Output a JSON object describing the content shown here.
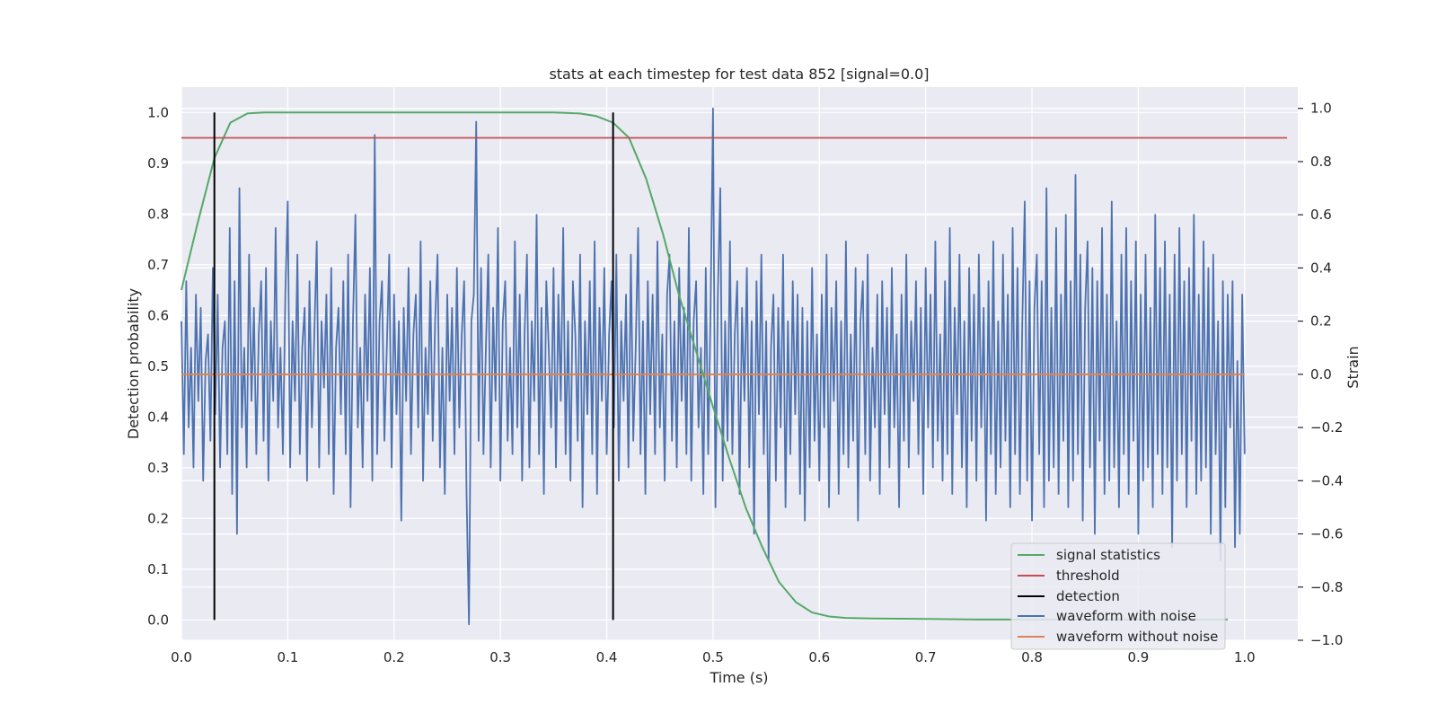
{
  "chart_data": {
    "type": "line",
    "title": "stats at each timestep for test data 852 [signal=0.0]",
    "xlabel": "Time (s)",
    "ylabel_left": "Detection probability",
    "ylabel_right": "Strain",
    "xlim": [
      0.0,
      1.05
    ],
    "ylim_left": [
      -0.04,
      1.05
    ],
    "ylim_right": [
      -1.0,
      1.08
    ],
    "xticks": [
      "0.0",
      "0.1",
      "0.2",
      "0.3",
      "0.4",
      "0.5",
      "0.6",
      "0.7",
      "0.8",
      "0.9",
      "1.0"
    ],
    "yticks_left": [
      "0.0",
      "0.1",
      "0.2",
      "0.3",
      "0.4",
      "0.5",
      "0.6",
      "0.7",
      "0.8",
      "0.9",
      "1.0"
    ],
    "yticks_right": [
      "−1.0",
      "−0.8",
      "−0.6",
      "−0.4",
      "−0.2",
      "0.0",
      "0.2",
      "0.4",
      "0.6",
      "0.8",
      "1.0"
    ],
    "grid": true,
    "legend_position": "lower-right",
    "colors": {
      "background": "#eaeaf2",
      "grid": "#ffffff",
      "signal_statistics": "#55a868",
      "threshold": "#c44e52",
      "detection": "#000000",
      "waveform_with_noise": "#4c72b0",
      "waveform_without_noise": "#dd8452"
    },
    "series": [
      {
        "name": "signal statistics",
        "axis": "left",
        "x": [
          0.0,
          0.015,
          0.031,
          0.046,
          0.062,
          0.078,
          0.1,
          0.2,
          0.3,
          0.35,
          0.375,
          0.39,
          0.406,
          0.421,
          0.437,
          0.453,
          0.468,
          0.484,
          0.5,
          0.515,
          0.531,
          0.546,
          0.562,
          0.578,
          0.593,
          0.609,
          0.625,
          0.65,
          0.7,
          0.75,
          0.8,
          0.9,
          0.984
        ],
        "y": [
          0.65,
          0.78,
          0.91,
          0.98,
          0.998,
          1.0,
          1.0,
          1.0,
          1.0,
          1.0,
          0.998,
          0.993,
          0.98,
          0.95,
          0.87,
          0.76,
          0.64,
          0.53,
          0.42,
          0.32,
          0.22,
          0.145,
          0.075,
          0.035,
          0.015,
          0.007,
          0.004,
          0.003,
          0.002,
          0.001,
          0.001,
          0.001,
          0.001
        ]
      },
      {
        "name": "threshold",
        "axis": "left",
        "x": [
          0.0,
          1.04
        ],
        "y": [
          0.95,
          0.95
        ]
      },
      {
        "name": "detection",
        "axis": "left",
        "x": [
          0.031,
          0.406
        ],
        "y": [
          1.0,
          1.0
        ]
      },
      {
        "name": "waveform with noise",
        "axis": "right",
        "x_range": [
          0.0,
          1.0
        ],
        "y": [
          0.2,
          -0.3,
          0.35,
          -0.2,
          0.1,
          -0.35,
          0.3,
          -0.1,
          0.25,
          -0.4,
          0.05,
          0.15,
          -0.25,
          0.4,
          -0.15,
          0.3,
          -0.35,
          0.1,
          0.2,
          -0.3,
          0.55,
          -0.45,
          0.35,
          -0.6,
          0.7,
          -0.2,
          0.1,
          -0.35,
          0.45,
          -0.1,
          0.25,
          -0.3,
          0.15,
          0.35,
          -0.25,
          0.4,
          -0.4,
          0.2,
          -0.1,
          0.55,
          -0.2,
          0.1,
          -0.3,
          0.3,
          0.65,
          -0.35,
          0.2,
          -0.1,
          0.45,
          -0.3,
          0.1,
          0.25,
          -0.4,
          0.35,
          -0.2,
          0.15,
          0.5,
          -0.35,
          0.2,
          -0.05,
          0.3,
          -0.3,
          0.4,
          -0.45,
          0.1,
          0.25,
          -0.15,
          0.35,
          -0.3,
          0.45,
          -0.5,
          0.2,
          0.6,
          -0.2,
          0.1,
          -0.35,
          0.3,
          -0.1,
          0.4,
          -0.4,
          0.9,
          -0.3,
          0.2,
          0.35,
          -0.25,
          0.1,
          0.45,
          -0.35,
          0.3,
          -0.15,
          0.2,
          -0.55,
          0.25,
          -0.1,
          0.4,
          -0.3,
          0.15,
          0.3,
          -0.2,
          0.5,
          -0.4,
          0.1,
          -0.15,
          0.35,
          -0.25,
          0.2,
          0.45,
          -0.35,
          0.1,
          -0.45,
          0.3,
          -0.1,
          0.25,
          -0.3,
          0.4,
          -0.2,
          0.15,
          0.35,
          -0.45,
          -0.94,
          0.2,
          0.3,
          0.95,
          -0.25,
          0.4,
          -0.3,
          0.1,
          0.45,
          -0.35,
          0.25,
          -0.1,
          0.55,
          -0.4,
          0.2,
          0.35,
          -0.25,
          0.1,
          -0.3,
          0.5,
          -0.2,
          0.3,
          -0.4,
          0.15,
          0.45,
          -0.35,
          0.2,
          -0.1,
          0.6,
          -0.3,
          0.25,
          -0.45,
          0.35,
          0.1,
          -0.2,
          0.4,
          -0.35,
          0.3,
          -0.1,
          0.55,
          -0.3,
          0.2,
          -0.4,
          0.35,
          0.15,
          -0.25,
          0.45,
          -0.5,
          0.2,
          -0.15,
          0.35,
          -0.3,
          0.5,
          -0.45,
          0.25,
          -0.1,
          0.4,
          -0.3,
          0.15,
          0.35,
          -0.2,
          0.45,
          -0.4,
          0.2,
          -0.1,
          0.3,
          -0.35,
          0.45,
          -0.25,
          0.1,
          0.55,
          -0.3,
          0.2,
          -0.45,
          0.35,
          -0.15,
          0.3,
          -0.3,
          0.5,
          -0.2,
          0.15,
          -0.4,
          0.3,
          0.45,
          -0.25,
          0.2,
          -0.35,
          0.4,
          -0.1,
          0.25,
          -0.3,
          0.55,
          -0.4,
          0.2,
          0.35,
          -0.2,
          0.1,
          -0.45,
          0.4,
          -0.3,
          0.25,
          1.0,
          -0.5,
          0.3,
          0.7,
          -0.4,
          0.2,
          -0.25,
          0.5,
          -0.3,
          0.15,
          0.35,
          -0.45,
          0.25,
          -0.1,
          0.4,
          -0.35,
          0.2,
          -0.6,
          0.35,
          -0.15,
          0.45,
          -0.3,
          0.2,
          -0.7,
          0.1,
          0.3,
          -0.4,
          0.25,
          -0.2,
          0.45,
          -0.5,
          0.2,
          -0.3,
          0.35,
          -0.15,
          0.3,
          -0.45,
          0.25,
          -0.55,
          0.2,
          -0.35,
          0.4,
          -0.25,
          0.15,
          -0.4,
          0.3,
          -0.2,
          0.45,
          -0.5,
          0.25,
          -0.1,
          0.35,
          -0.45,
          0.2,
          -0.3,
          0.5,
          -0.35,
          0.15,
          -0.25,
          0.4,
          -0.55,
          0.2,
          0.35,
          -0.3,
          0.45,
          -0.4,
          0.1,
          -0.2,
          0.3,
          -0.45,
          0.35,
          -0.15,
          0.25,
          -0.35,
          0.4,
          -0.2,
          0.15,
          -0.5,
          0.3,
          -0.25,
          0.45,
          -0.35,
          0.2,
          -0.1,
          0.35,
          -0.3,
          0.25,
          -0.45,
          0.4,
          -0.2,
          0.3,
          -0.35,
          0.5,
          -0.25,
          0.15,
          -0.4,
          0.35,
          -0.3,
          0.55,
          -0.45,
          0.25,
          -0.15,
          0.45,
          -0.35,
          0.2,
          -0.5,
          0.4,
          -0.25,
          0.3,
          -0.4,
          0.45,
          -0.2,
          0.25,
          -0.55,
          0.35,
          -0.3,
          0.5,
          -0.45,
          0.2,
          -0.35,
          0.45,
          -0.25,
          0.3,
          -0.5,
          0.55,
          -0.3,
          0.4,
          -0.45,
          0.2,
          0.65,
          -0.4,
          0.35,
          -0.55,
          0.25,
          0.45,
          -0.3,
          0.35,
          -0.5,
          0.7,
          -0.4,
          0.25,
          -0.35,
          0.55,
          -0.45,
          0.3,
          -0.25,
          0.6,
          -0.5,
          0.35,
          -0.4,
          0.75,
          -0.3,
          0.45,
          -0.55,
          0.25,
          0.5,
          -0.35,
          0.4,
          -0.6,
          0.35,
          -0.25,
          0.55,
          -0.45,
          0.3,
          -0.4,
          0.65,
          -0.35,
          0.2,
          -0.5,
          0.45,
          -0.3,
          0.55,
          -0.45,
          0.35,
          -0.25,
          0.5,
          -0.6,
          0.3,
          -0.4,
          0.45,
          -0.35,
          0.25,
          -0.5,
          0.6,
          -0.3,
          0.4,
          -0.45,
          0.5,
          -0.35,
          0.3,
          -0.65,
          0.45,
          -0.4,
          0.55,
          -0.3,
          0.35,
          -0.5,
          0.4,
          -0.25,
          0.6,
          -0.45,
          0.3,
          -0.4,
          0.5,
          -0.35,
          0.4,
          -0.6,
          0.45,
          -0.3,
          0.2,
          -0.7,
          0.35,
          -0.5,
          0.3,
          -0.2,
          0.35,
          -0.65,
          0.05,
          -0.6,
          0.3,
          -0.3
        ]
      },
      {
        "name": "waveform without noise",
        "axis": "right",
        "x": [
          0.0,
          1.0
        ],
        "y": [
          0.0,
          0.0
        ]
      }
    ]
  }
}
